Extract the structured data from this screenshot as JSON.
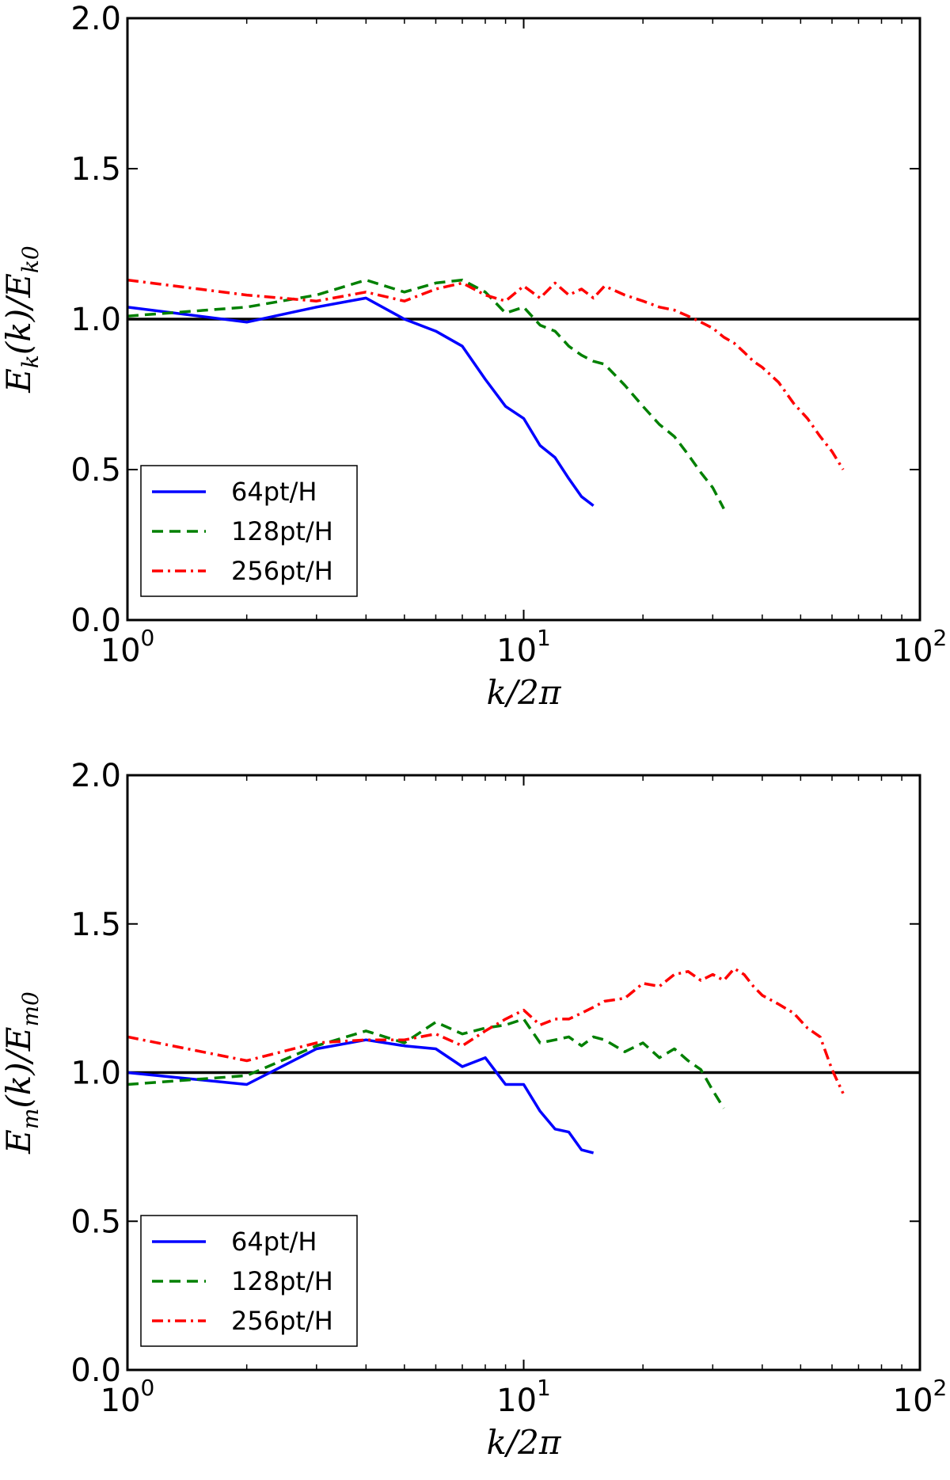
{
  "chart_data": [
    {
      "type": "line",
      "xscale": "log",
      "xlim": [
        1,
        100
      ],
      "ylim": [
        0.0,
        2.0
      ],
      "xticks": [
        {
          "base": "10",
          "exp": "0"
        },
        {
          "base": "10",
          "exp": "1"
        },
        {
          "base": "10",
          "exp": "2"
        }
      ],
      "yticks": [
        "0.0",
        "0.5",
        "1.0",
        "1.5",
        "2.0"
      ],
      "xlabel": "k/2π",
      "ylabel": {
        "main": "E",
        "sub": "k",
        "paren": "(k)/",
        "main2": "E",
        "sub2": "k0"
      },
      "reference_line": 1.0,
      "legend_position": "lower-left",
      "series": [
        {
          "name": "64pt/H",
          "color": "#0000ff",
          "style": "solid",
          "x": [
            1,
            2,
            3,
            4,
            5,
            6,
            7,
            8,
            9,
            10,
            11,
            12,
            13,
            14,
            15
          ],
          "y": [
            1.04,
            0.99,
            1.04,
            1.07,
            1.0,
            0.96,
            0.91,
            0.8,
            0.71,
            0.67,
            0.58,
            0.54,
            0.47,
            0.41,
            0.38
          ]
        },
        {
          "name": "128pt/H",
          "color": "#008000",
          "style": "dashed",
          "x": [
            1,
            2,
            3,
            4,
            5,
            6,
            7,
            8,
            9,
            10,
            11,
            12,
            13,
            14,
            15,
            16,
            18,
            20,
            22,
            24,
            26,
            28,
            30,
            32
          ],
          "y": [
            1.01,
            1.04,
            1.08,
            1.13,
            1.09,
            1.12,
            1.13,
            1.09,
            1.02,
            1.04,
            0.98,
            0.96,
            0.91,
            0.88,
            0.86,
            0.85,
            0.78,
            0.71,
            0.65,
            0.61,
            0.55,
            0.49,
            0.44,
            0.37
          ]
        },
        {
          "name": "256pt/H",
          "color": "#ff0000",
          "style": "dashdot",
          "x": [
            1,
            2,
            3,
            4,
            5,
            6,
            7,
            8,
            9,
            10,
            11,
            12,
            13,
            14,
            15,
            16,
            18,
            20,
            22,
            24,
            26,
            28,
            30,
            32,
            34,
            36,
            38,
            40,
            44,
            48,
            52,
            56,
            60,
            64
          ],
          "y": [
            1.13,
            1.08,
            1.06,
            1.09,
            1.06,
            1.1,
            1.12,
            1.08,
            1.06,
            1.11,
            1.07,
            1.12,
            1.08,
            1.1,
            1.07,
            1.11,
            1.08,
            1.06,
            1.04,
            1.03,
            1.01,
            0.99,
            0.97,
            0.94,
            0.92,
            0.89,
            0.86,
            0.84,
            0.79,
            0.72,
            0.67,
            0.61,
            0.56,
            0.5
          ]
        }
      ]
    },
    {
      "type": "line",
      "xscale": "log",
      "xlim": [
        1,
        100
      ],
      "ylim": [
        0.0,
        2.0
      ],
      "xticks": [
        {
          "base": "10",
          "exp": "0"
        },
        {
          "base": "10",
          "exp": "1"
        },
        {
          "base": "10",
          "exp": "2"
        }
      ],
      "yticks": [
        "0.0",
        "0.5",
        "1.0",
        "1.5",
        "2.0"
      ],
      "xlabel": "k/2π",
      "ylabel": {
        "main": "E",
        "sub": "m",
        "paren": "(k)/",
        "main2": "E",
        "sub2": "m0"
      },
      "reference_line": 1.0,
      "legend_position": "lower-left",
      "series": [
        {
          "name": "64pt/H",
          "color": "#0000ff",
          "style": "solid",
          "x": [
            1,
            2,
            3,
            4,
            5,
            6,
            7,
            8,
            9,
            10,
            11,
            12,
            13,
            14,
            15
          ],
          "y": [
            1.0,
            0.96,
            1.08,
            1.11,
            1.09,
            1.08,
            1.02,
            1.05,
            0.96,
            0.96,
            0.87,
            0.81,
            0.8,
            0.74,
            0.73
          ]
        },
        {
          "name": "128pt/H",
          "color": "#008000",
          "style": "dashed",
          "x": [
            1,
            2,
            3,
            4,
            5,
            6,
            7,
            8,
            9,
            10,
            11,
            12,
            13,
            14,
            15,
            16,
            18,
            20,
            22,
            24,
            26,
            28,
            30,
            32
          ],
          "y": [
            0.96,
            0.99,
            1.09,
            1.14,
            1.1,
            1.17,
            1.13,
            1.15,
            1.16,
            1.18,
            1.1,
            1.11,
            1.12,
            1.09,
            1.12,
            1.11,
            1.07,
            1.1,
            1.05,
            1.08,
            1.04,
            1.01,
            0.94,
            0.88
          ]
        },
        {
          "name": "256pt/H",
          "color": "#ff0000",
          "style": "dashdot",
          "x": [
            1,
            2,
            3,
            4,
            5,
            6,
            7,
            8,
            9,
            10,
            11,
            12,
            13,
            14,
            15,
            16,
            18,
            20,
            22,
            24,
            26,
            28,
            30,
            32,
            34,
            36,
            38,
            40,
            44,
            48,
            52,
            56,
            60,
            64
          ],
          "y": [
            1.12,
            1.04,
            1.1,
            1.11,
            1.11,
            1.13,
            1.09,
            1.14,
            1.18,
            1.21,
            1.16,
            1.18,
            1.18,
            1.2,
            1.22,
            1.24,
            1.25,
            1.3,
            1.29,
            1.33,
            1.34,
            1.31,
            1.33,
            1.31,
            1.35,
            1.33,
            1.29,
            1.26,
            1.23,
            1.2,
            1.15,
            1.12,
            1.01,
            0.93
          ]
        }
      ]
    }
  ]
}
